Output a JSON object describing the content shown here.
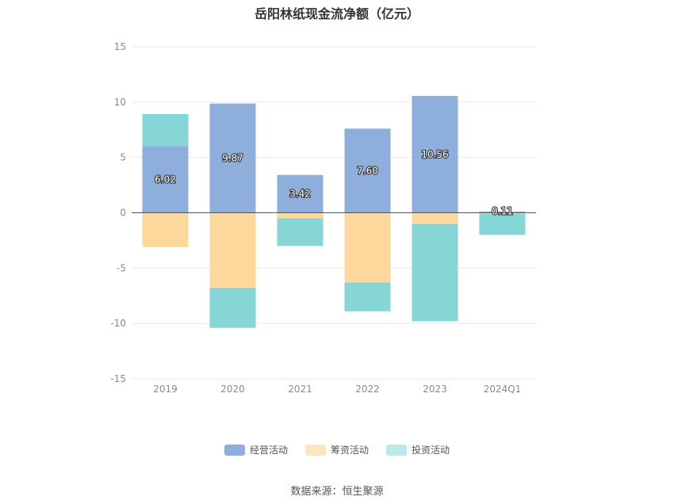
{
  "chart_data": {
    "type": "bar",
    "stacked": true,
    "title": "岳阳林纸现金流净额（亿元）",
    "categories": [
      "2019",
      "2020",
      "2021",
      "2022",
      "2023",
      "2024Q1"
    ],
    "ylim": [
      -15,
      15
    ],
    "yticks": [
      15,
      10,
      5,
      0,
      -5,
      -10,
      -15
    ],
    "grid": true,
    "legend_position": "bottom",
    "series": [
      {
        "name": "经营活动",
        "color": "#8eaedb",
        "values": [
          6.02,
          9.87,
          3.42,
          7.6,
          10.56,
          0.11
        ],
        "labels": [
          "6.02",
          "9.87",
          "3.42",
          "7.60",
          "10.56",
          "0.11"
        ]
      },
      {
        "name": "筹资活动",
        "color": "#fdd89c",
        "values": [
          -3.1,
          -6.8,
          -0.5,
          -6.3,
          -1.0,
          -0.1
        ]
      },
      {
        "name": "投资活动",
        "color": "#86d6d8",
        "values": [
          2.9,
          -3.6,
          -2.5,
          -2.6,
          -8.8,
          -1.9
        ]
      }
    ]
  },
  "source_text": "数据来源：恒生聚源"
}
